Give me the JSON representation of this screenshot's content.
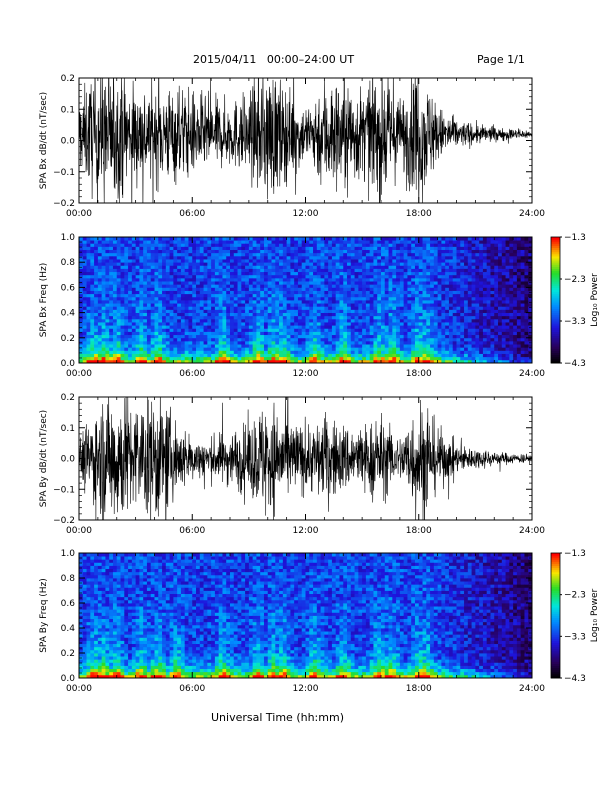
{
  "header": {
    "title": "2015/04/11   00:00–24:00 UT",
    "page": "Page 1/1",
    "xlabel": "Universal Time (hh:mm)"
  },
  "chart_data": [
    {
      "type": "line",
      "ylabel": "SPA Bx dB/dt (nT/sec)",
      "x_range": [
        "00:00",
        "24:00"
      ],
      "x_ticks": [
        "00:00",
        "06:00",
        "12:00",
        "18:00",
        "24:00"
      ],
      "ylim": [
        -0.2,
        0.2
      ],
      "y_ticks": [
        "−0.2",
        "−0.1",
        "0.0",
        "0.1",
        "0.2"
      ],
      "line_color": "#000000",
      "baseline": 0.02,
      "amplitude_envelope": {
        "hours": [
          0,
          1,
          2,
          3,
          4,
          5,
          6,
          7,
          8,
          9,
          10,
          11,
          12,
          13,
          14,
          15,
          16,
          17,
          18,
          19,
          20,
          21,
          22,
          23,
          24
        ],
        "values": [
          0.1,
          0.2,
          0.18,
          0.14,
          0.13,
          0.14,
          0.12,
          0.1,
          0.09,
          0.12,
          0.2,
          0.13,
          0.08,
          0.16,
          0.16,
          0.13,
          0.18,
          0.1,
          0.2,
          0.08,
          0.04,
          0.03,
          0.02,
          0.015,
          0.012
        ]
      }
    },
    {
      "type": "heatmap",
      "ylabel": "SPA Bx Freq (Hz)",
      "x_range": [
        "00:00",
        "24:00"
      ],
      "x_ticks": [
        "00:00",
        "06:00",
        "12:00",
        "18:00",
        "24:00"
      ],
      "ylim": [
        0.0,
        1.0
      ],
      "y_ticks": [
        "0.0",
        "0.2",
        "0.4",
        "0.6",
        "0.8",
        "1.0"
      ],
      "colorbar": {
        "label": "Log₁₀ Power",
        "range": [
          -4.3,
          -1.3
        ],
        "ticks": [
          "−1.3",
          "−2.3",
          "−3.3",
          "−4.3"
        ]
      },
      "activity_hours": [
        0.8,
        1.3,
        2.0,
        3.3,
        4.2,
        7.6,
        9.5,
        10.3,
        10.8,
        12.5,
        14.0,
        15.9,
        16.6,
        18.0,
        18.4
      ]
    },
    {
      "type": "line",
      "ylabel": "SPA By dB/dt (nT/sec)",
      "x_range": [
        "00:00",
        "24:00"
      ],
      "x_ticks": [
        "00:00",
        "06:00",
        "12:00",
        "18:00",
        "24:00"
      ],
      "ylim": [
        -0.2,
        0.2
      ],
      "y_ticks": [
        "−0.2",
        "−0.1",
        "0.0",
        "0.1",
        "0.2"
      ],
      "line_color": "#000000",
      "baseline": 0.0,
      "amplitude_envelope": {
        "hours": [
          0,
          1,
          2,
          3,
          4,
          5,
          6,
          7,
          8,
          9,
          10,
          11,
          12,
          13,
          14,
          15,
          16,
          17,
          18,
          19,
          20,
          21,
          22,
          23,
          24
        ],
        "values": [
          0.06,
          0.16,
          0.2,
          0.15,
          0.2,
          0.12,
          0.06,
          0.06,
          0.08,
          0.1,
          0.18,
          0.12,
          0.09,
          0.12,
          0.1,
          0.09,
          0.12,
          0.06,
          0.18,
          0.09,
          0.04,
          0.03,
          0.02,
          0.015,
          0.012
        ]
      }
    },
    {
      "type": "heatmap",
      "ylabel": "SPA By Freq (Hz)",
      "x_range": [
        "00:00",
        "24:00"
      ],
      "x_ticks": [
        "00:00",
        "06:00",
        "12:00",
        "18:00",
        "24:00"
      ],
      "ylim": [
        0.0,
        1.0
      ],
      "y_ticks": [
        "0.0",
        "0.2",
        "0.4",
        "0.6",
        "0.8",
        "1.0"
      ],
      "colorbar": {
        "label": "Log₁₀ Power",
        "range": [
          -4.3,
          -1.3
        ],
        "ticks": [
          "−1.3",
          "−2.3",
          "−3.3",
          "−4.3"
        ]
      },
      "activity_hours": [
        0.8,
        1.3,
        2.0,
        3.3,
        4.2,
        5.2,
        7.6,
        9.5,
        10.3,
        10.8,
        12.5,
        14.0,
        15.9,
        16.6,
        18.0,
        18.4
      ]
    }
  ]
}
